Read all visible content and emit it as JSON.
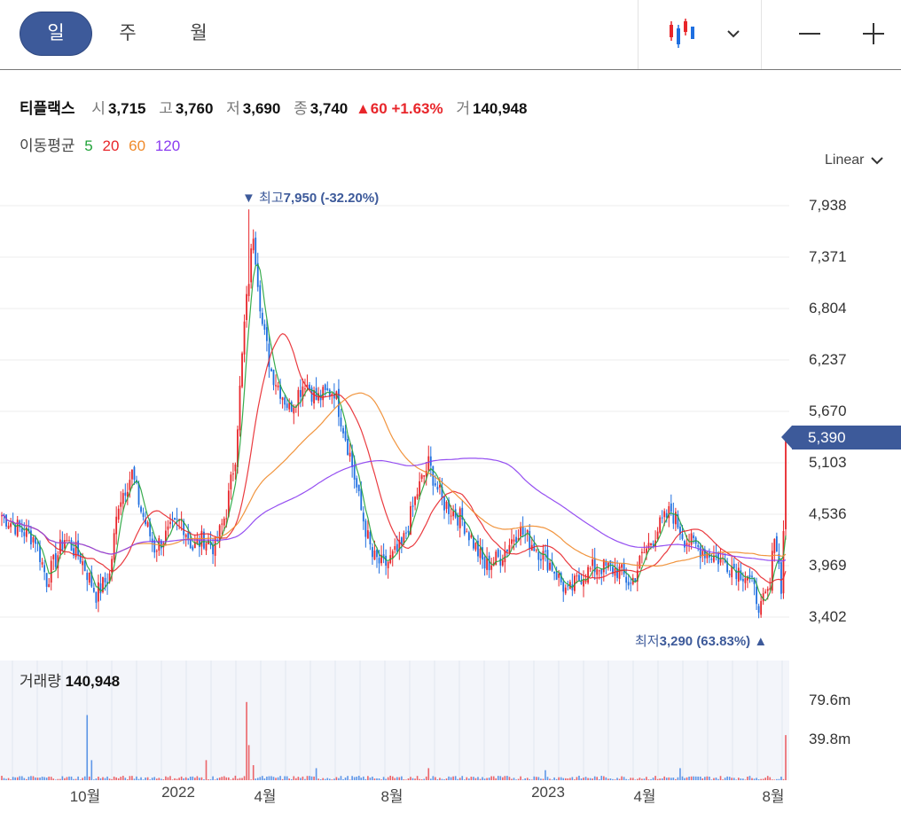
{
  "periods": [
    {
      "label": "일",
      "active": true
    },
    {
      "label": "주",
      "active": false
    },
    {
      "label": "월",
      "active": false
    }
  ],
  "toolbar": {
    "chart_type_icon": "candlestick-icon",
    "dropdown_icon": "chevron-down-icon",
    "zoom_out_icon": "minus-icon",
    "zoom_in_icon": "plus-icon"
  },
  "quote": {
    "name": "티플랙스",
    "open_label": "시",
    "open": "3,715",
    "high_label": "고",
    "high": "3,760",
    "low_label": "저",
    "low": "3,690",
    "close_label": "종",
    "close": "3,740",
    "change": "▲60",
    "change_pct": "+1.63%",
    "volume_label": "거",
    "volume": "140,948"
  },
  "moving_average": {
    "label": "이동평균",
    "periods": [
      {
        "value": "5",
        "color": "#22a33a"
      },
      {
        "value": "20",
        "color": "#e8262b"
      },
      {
        "value": "60",
        "color": "#f08a2a"
      },
      {
        "value": "120",
        "color": "#8a3cf0"
      }
    ]
  },
  "scale_selector": "Linear",
  "current_price": "5,390",
  "high_annotation": {
    "label": "최고",
    "value": "7,950 (-32.20%)"
  },
  "low_annotation": {
    "label": "최저",
    "value": "3,290 (63.83%)"
  },
  "volume_panel": {
    "label": "거래량",
    "value": "140,948"
  },
  "colors": {
    "up": "#e8262b",
    "down": "#1f6fe0",
    "accent": "#3d5a9a"
  },
  "chart_data": {
    "type": "candlestick",
    "price_axis": {
      "ticks": [
        "7,938",
        "7,371",
        "6,804",
        "6,237",
        "5,670",
        "5,103",
        "4,536",
        "3,969",
        "3,402"
      ],
      "range": [
        3200,
        8000
      ],
      "scale": "linear"
    },
    "volume_axis": {
      "ticks": [
        "79.6m",
        "39.8m"
      ],
      "range": [
        0,
        100
      ]
    },
    "x_axis": {
      "ticks": [
        "10월",
        "2022",
        "4월",
        "8월",
        "2023",
        "4월",
        "8월"
      ]
    },
    "close_path": [
      [
        0,
        4550
      ],
      [
        8,
        4400
      ],
      [
        15,
        4300
      ],
      [
        20,
        3850
      ],
      [
        28,
        4300
      ],
      [
        35,
        4100
      ],
      [
        42,
        3700
      ],
      [
        48,
        3900
      ],
      [
        52,
        4700
      ],
      [
        58,
        5000
      ],
      [
        62,
        4600
      ],
      [
        68,
        4200
      ],
      [
        74,
        4350
      ],
      [
        80,
        4500
      ],
      [
        85,
        4200
      ],
      [
        90,
        4300
      ],
      [
        95,
        4200
      ],
      [
        100,
        4600
      ],
      [
        104,
        5200
      ],
      [
        108,
        6600
      ],
      [
        112,
        7600
      ],
      [
        116,
        6600
      ],
      [
        120,
        6100
      ],
      [
        128,
        5700
      ],
      [
        135,
        6000
      ],
      [
        140,
        5800
      ],
      [
        148,
        5900
      ],
      [
        155,
        5200
      ],
      [
        160,
        4600
      ],
      [
        165,
        4100
      ],
      [
        170,
        4000
      ],
      [
        178,
        4200
      ],
      [
        185,
        4800
      ],
      [
        190,
        5100
      ],
      [
        196,
        4700
      ],
      [
        205,
        4500
      ],
      [
        215,
        4000
      ],
      [
        222,
        4100
      ],
      [
        230,
        4400
      ],
      [
        238,
        4200
      ],
      [
        245,
        4000
      ],
      [
        252,
        3700
      ],
      [
        258,
        3900
      ],
      [
        265,
        4000
      ],
      [
        275,
        3950
      ],
      [
        280,
        3800
      ],
      [
        285,
        4100
      ],
      [
        292,
        4400
      ],
      [
        298,
        4600
      ],
      [
        304,
        4300
      ],
      [
        310,
        4200
      ],
      [
        318,
        4100
      ],
      [
        325,
        4000
      ],
      [
        332,
        3900
      ],
      [
        338,
        3550
      ],
      [
        342,
        3750
      ],
      [
        344,
        4400
      ],
      [
        347,
        3800
      ],
      [
        349,
        4900
      ],
      [
        350,
        5390
      ]
    ],
    "candles": 350,
    "series": [
      {
        "name": "5",
        "type": "line",
        "window": 5
      },
      {
        "name": "20",
        "type": "line",
        "window": 20
      },
      {
        "name": "60",
        "type": "line",
        "window": 60
      },
      {
        "name": "120",
        "type": "line",
        "window": 120
      }
    ],
    "volume_spikes": [
      [
        38,
        65
      ],
      [
        40,
        20
      ],
      [
        91,
        20
      ],
      [
        109,
        78
      ],
      [
        110,
        35
      ],
      [
        112,
        15
      ],
      [
        140,
        12
      ],
      [
        190,
        12
      ],
      [
        242,
        10
      ],
      [
        302,
        12
      ],
      [
        349,
        45
      ]
    ]
  }
}
